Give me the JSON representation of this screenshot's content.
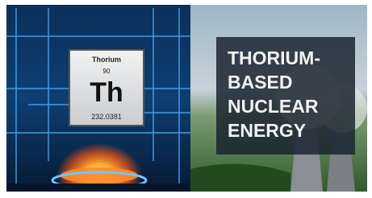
{
  "element": {
    "name": "Thorium",
    "number": "90",
    "symbol": "Th",
    "mass": "232.0381"
  },
  "headline": {
    "lines": [
      "THORIUM-",
      "BASED",
      "NUCLEAR",
      "ENERGY"
    ]
  }
}
